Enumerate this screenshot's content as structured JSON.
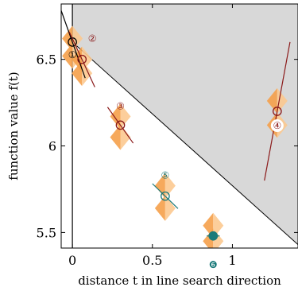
{
  "chart_data": {
    "type": "scatter",
    "xlabel": "distance t in line search direction",
    "ylabel": "function value f(t)",
    "xlim": [
      -0.07,
      1.41
    ],
    "ylim": [
      5.41,
      6.82
    ],
    "x_ticks": [
      {
        "value": 0,
        "label": "0"
      },
      {
        "value": 0.5,
        "label": "0.5"
      },
      {
        "value": 1,
        "label": "1"
      }
    ],
    "y_ticks": [
      {
        "value": 5.5,
        "label": "5.5"
      },
      {
        "value": 6,
        "label": "6"
      },
      {
        "value": 6.5,
        "label": "6.5"
      }
    ],
    "grid": false,
    "shaded_region": {
      "description": "infeasible area above Armijo line",
      "color": "#d8d8d8",
      "line": {
        "x": [
          0,
          1.41
        ],
        "y": [
          6.6,
          5.43
        ]
      }
    },
    "colors": {
      "dark_red": "#8b1a1a",
      "teal": "#1b7a7a",
      "orange": "#f5a04a",
      "light_orange": "#fcc990"
    },
    "points": [
      {
        "id": 1,
        "label": "①",
        "x": 0.0,
        "y": 6.6,
        "slope": -2.6,
        "color": "#000000",
        "filled": false
      },
      {
        "id": 2,
        "label": "②",
        "x": 0.06,
        "y": 6.5,
        "slope": -2.0,
        "color": "#8b1a1a",
        "filled": false
      },
      {
        "id": 3,
        "label": "③",
        "x": 0.3,
        "y": 6.12,
        "slope": -1.3,
        "color": "#8b1a1a",
        "filled": false
      },
      {
        "id": 4,
        "label": "④",
        "x": 1.28,
        "y": 6.2,
        "slope": 5.0,
        "color": "#8b1a1a",
        "filled": false
      },
      {
        "id": 5,
        "label": "⑤",
        "x": 0.58,
        "y": 5.71,
        "slope": -0.9,
        "color": "#1b7a7a",
        "filled": false
      },
      {
        "id": 6,
        "label": "❻",
        "x": 0.88,
        "y": 5.48,
        "slope": 0.0,
        "color": "#1b7a7a",
        "filled": true
      }
    ],
    "uncertainty_diamonds": [
      {
        "x": 0.0,
        "y": 6.62
      },
      {
        "x": 0.0,
        "y": 6.52
      },
      {
        "x": 0.06,
        "y": 6.5
      },
      {
        "x": 0.06,
        "y": 6.42
      },
      {
        "x": 0.3,
        "y": 6.17
      },
      {
        "x": 0.3,
        "y": 6.05
      },
      {
        "x": 1.28,
        "y": 6.26
      },
      {
        "x": 1.28,
        "y": 6.12
      },
      {
        "x": 0.58,
        "y": 5.77
      },
      {
        "x": 0.58,
        "y": 5.64
      },
      {
        "x": 0.88,
        "y": 5.54
      },
      {
        "x": 0.88,
        "y": 5.45
      }
    ]
  }
}
